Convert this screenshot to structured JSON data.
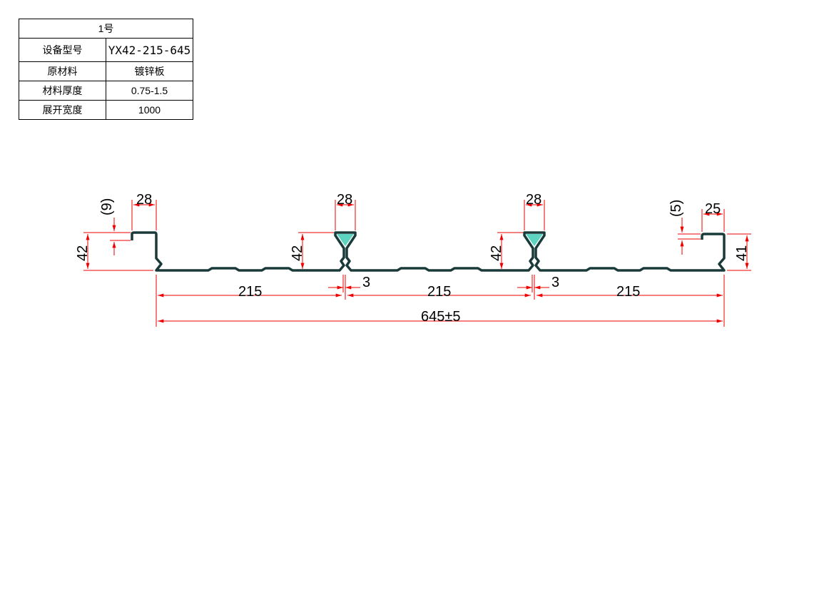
{
  "spec_table": {
    "title": "1号",
    "rows": [
      {
        "label": "设备型号",
        "value": "YX42-215-645"
      },
      {
        "label": "原材料",
        "value": "镀锌板"
      },
      {
        "label": "材料厚度",
        "value": "0.75-1.5"
      },
      {
        "label": "展开宽度",
        "value": "1000"
      }
    ]
  },
  "drawing": {
    "left_flange_width": "28",
    "left_lip": "(9)",
    "left_height": "42",
    "rib1_width": "28",
    "rib1_height": "42",
    "rib1_gap": "3",
    "rib2_width": "28",
    "rib2_height": "42",
    "rib2_gap": "3",
    "right_flange_width": "25",
    "right_lip": "(5)",
    "right_height": "41",
    "span1": "215",
    "span2": "215",
    "span3": "215",
    "total_width": "645±5",
    "colors": {
      "dimension": "#e00000",
      "profile": "#1a3a3a",
      "fill": "#5ed4c0"
    }
  }
}
